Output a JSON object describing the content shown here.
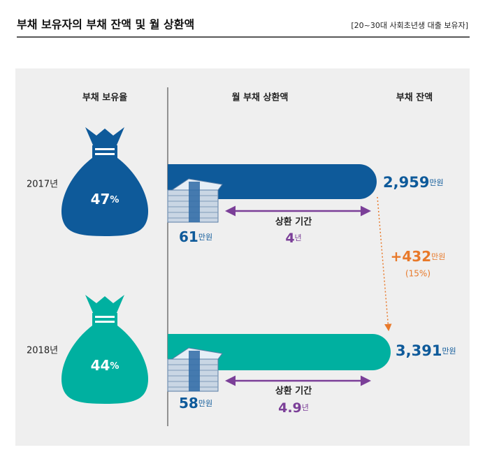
{
  "header": {
    "title": "부채 보유자의 부채 잔액 및 월 상환액",
    "note": "[20~30대 사회초년생 대출 보유자]"
  },
  "columns": [
    "부채 보유율",
    "월 부채 상환액",
    "부채 잔액"
  ],
  "rows": [
    {
      "year": "2017년",
      "rate": "47",
      "rate_unit": "%",
      "payment": "61",
      "payment_unit": "만원",
      "term_label": "상환 기간",
      "term": "4",
      "term_unit": "년",
      "balance": "2,959",
      "balance_unit": "만원"
    },
    {
      "year": "2018년",
      "rate": "44",
      "rate_unit": "%",
      "payment": "58",
      "payment_unit": "만원",
      "term_label": "상환 기간",
      "term": "4.9",
      "term_unit": "년",
      "balance": "3,391",
      "balance_unit": "만원"
    }
  ],
  "change": {
    "amount": "+432",
    "unit": "만원",
    "percent": "(15%)"
  }
}
